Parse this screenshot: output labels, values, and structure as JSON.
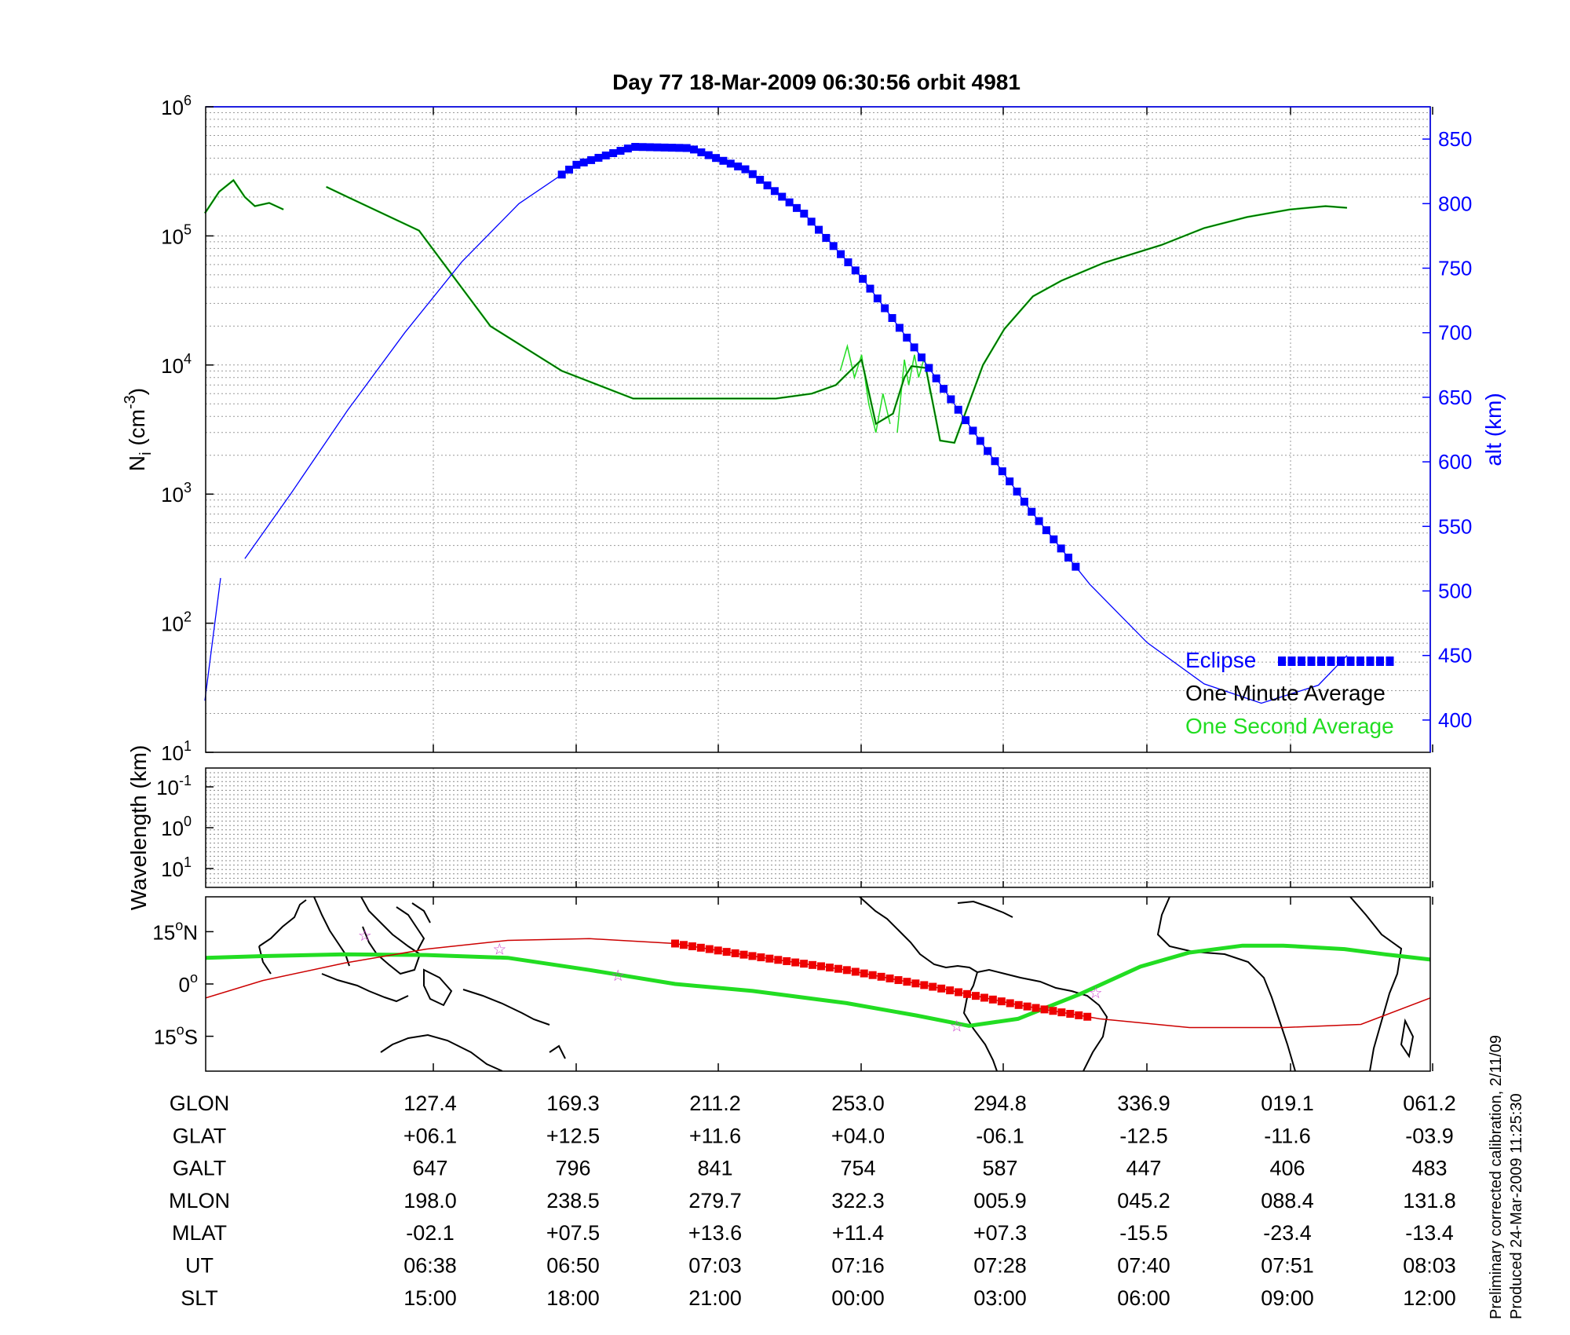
{
  "title": "Day 77  18-Mar-2009 06:30:56   orbit 4981",
  "footer": {
    "line1": "Preliminary corrected calibration, 2/11/09",
    "line2": "Produced 24-Mar-2009 11:25:30"
  },
  "colors": {
    "altitude": "#0000ff",
    "eclipse": "#0000ff",
    "one_minute": "#004400",
    "one_second": "#22dd22",
    "track_red": "#cc0000",
    "track_red_eclipse": "#ee0000",
    "mag_equator": "#22dd22",
    "stars": "#cc44cc"
  },
  "chart_data": [
    {
      "type": "line",
      "name": "density-altitude",
      "ylabel": "N",
      "ylabel_sub": "i",
      "ylabel_unit_open": " (cm",
      "ylabel_unit_exp": "-3",
      "ylabel_unit_close": ")",
      "y2label": "alt (km)",
      "yscale": "log",
      "ylim": [
        10,
        1000000
      ],
      "y_ticks": [
        {
          "base": "10",
          "exp": "1",
          "value": 10
        },
        {
          "base": "10",
          "exp": "2",
          "value": 100
        },
        {
          "base": "10",
          "exp": "3",
          "value": 1000
        },
        {
          "base": "10",
          "exp": "4",
          "value": 10000
        },
        {
          "base": "10",
          "exp": "5",
          "value": 100000
        },
        {
          "base": "10",
          "exp": "6",
          "value": 1000000
        }
      ],
      "y2lim": [
        375,
        875
      ],
      "y2_ticks": [
        "400",
        "450",
        "500",
        "550",
        "600",
        "650",
        "700",
        "750",
        "800",
        "850"
      ],
      "x_ticks_ut": [
        "06:38",
        "06:50",
        "07:03",
        "07:16",
        "07:28",
        "07:40",
        "07:51",
        "08:03"
      ],
      "legend": [
        {
          "label": "Eclipse",
          "key": "eclipse"
        },
        {
          "label": "One Minute Average",
          "key": "one_minute"
        },
        {
          "label": "One Second Average",
          "key": "one_second"
        }
      ],
      "altitude_km": {
        "segments": [
          {
            "x": [
              0.0,
              0.11
            ],
            "y": [
              415,
              510
            ]
          },
          {
            "x": [
              0.28,
              0.6,
              1.0,
              1.4,
              1.8,
              2.2,
              2.6,
              3.0,
              3.4,
              3.8,
              4.2,
              4.6,
              5.0,
              5.4,
              5.8,
              6.2,
              6.6,
              7.0,
              7.4,
              7.8,
              8.0
            ],
            "y": [
              525,
              575,
              640,
              700,
              755,
              800,
              830,
              844,
              843,
              826,
              792,
              743,
              684,
              621,
              560,
              505,
              460,
              428,
              413,
              427,
              450
            ]
          }
        ]
      },
      "eclipse_x": [
        2.5,
        6.1
      ],
      "ni_one_minute": {
        "segments": [
          {
            "x": [
              0.0,
              0.1,
              0.2,
              0.28,
              0.35,
              0.45,
              0.55
            ],
            "y": [
              150000,
              220000,
              270000,
              200000,
              170000,
              180000,
              160000
            ]
          },
          {
            "x": [
              0.85,
              1.0,
              1.5,
              2.0,
              2.5,
              3.0,
              3.5,
              4.0,
              4.25,
              4.42,
              4.52,
              4.6,
              4.7,
              4.82,
              4.9,
              4.95,
              5.05,
              5.1,
              5.15,
              5.25,
              5.35,
              5.45,
              5.6,
              5.8,
              6.0,
              6.3,
              6.7,
              7.0,
              7.3,
              7.6,
              7.85,
              8.0
            ],
            "y": [
              240000,
              200000,
              110000,
              20000,
              9000,
              5500,
              5500,
              5500,
              6000,
              7000,
              9000,
              11000,
              3500,
              4200,
              8000,
              9800,
              9500,
              5000,
              2600,
              2500,
              5000,
              10000,
              19000,
              34000,
              45000,
              62000,
              85000,
              115000,
              140000,
              160000,
              170000,
              165000
            ]
          }
        ]
      },
      "ni_one_second_spikes": [
        {
          "x": [
            4.45,
            4.5,
            4.55,
            4.6,
            4.65,
            4.7,
            4.75,
            4.8
          ],
          "y": [
            9000,
            14000,
            8000,
            12000,
            5000,
            3000,
            6000,
            3500
          ]
        },
        {
          "x": [
            4.85,
            4.9,
            4.93,
            4.97,
            5.0,
            5.04,
            5.08
          ],
          "y": [
            3000,
            11000,
            7000,
            12000,
            8000,
            11500,
            6000
          ]
        }
      ]
    },
    {
      "type": "heatmap",
      "name": "wavelength",
      "ylabel": "Wavelength (km)",
      "y_ticks": [
        {
          "base": "10",
          "exp": "-1"
        },
        {
          "base": "10",
          "exp": "0"
        },
        {
          "base": "10",
          "exp": "1"
        }
      ]
    },
    {
      "type": "line",
      "name": "ground-track-map",
      "y_ticks": [
        {
          "label": "15",
          "deg": "o",
          "suffix": "N",
          "value": 15
        },
        {
          "label": "0",
          "deg": "o",
          "suffix": "",
          "value": 0
        },
        {
          "label": "15",
          "deg": "o",
          "suffix": "S",
          "value": -15
        }
      ],
      "ylim": [
        -25,
        25
      ],
      "xlim_lon": [
        96,
        396
      ],
      "satellite_track": {
        "lon": [
          96,
          110,
          130,
          150,
          170,
          190,
          211,
          230,
          253,
          275,
          295,
          315,
          337,
          360,
          379,
          396
        ],
        "lat": [
          -4,
          1,
          6,
          10,
          12.5,
          13,
          11.6,
          8,
          4,
          -1,
          -6,
          -10,
          -12.5,
          -12.5,
          -11.6,
          -4
        ]
      },
      "eclipse_track_lon": [
        211,
        312
      ],
      "magnetic_equator": {
        "lon": [
          96,
          110,
          130,
          150,
          170,
          190,
          211,
          230,
          253,
          270,
          283,
          295,
          310,
          325,
          337,
          350,
          360,
          375,
          385,
          396
        ],
        "lat": [
          7.5,
          8,
          8.5,
          8.3,
          7.5,
          4,
          0,
          -2,
          -5.5,
          -9,
          -12,
          -10,
          -3,
          5,
          9,
          11,
          11,
          10,
          8.5,
          7
        ]
      },
      "stars": [
        {
          "lon": 135,
          "lat": 14
        },
        {
          "lon": 168,
          "lat": 10
        },
        {
          "lon": 197,
          "lat": 2.5
        },
        {
          "lon": 280,
          "lat": -12
        },
        {
          "lon": 314,
          "lat": -2.5
        }
      ]
    }
  ],
  "table": {
    "rows": [
      {
        "label": "GLON",
        "values": [
          "127.4",
          "169.3",
          "211.2",
          "253.0",
          "294.8",
          "336.9",
          "019.1",
          "061.2"
        ]
      },
      {
        "label": "GLAT",
        "values": [
          "+06.1",
          "+12.5",
          "+11.6",
          "+04.0",
          "-06.1",
          "-12.5",
          "-11.6",
          "-03.9"
        ]
      },
      {
        "label": "GALT",
        "values": [
          "647",
          "796",
          "841",
          "754",
          "587",
          "447",
          "406",
          "483"
        ]
      },
      {
        "label": "MLON",
        "values": [
          "198.0",
          "238.5",
          "279.7",
          "322.3",
          "005.9",
          "045.2",
          "088.4",
          "131.8"
        ]
      },
      {
        "label": "MLAT",
        "values": [
          "-02.1",
          "+07.5",
          "+13.6",
          "+11.4",
          "+07.3",
          "-15.5",
          "-23.4",
          "-13.4"
        ]
      },
      {
        "label": "UT",
        "values": [
          "06:38",
          "06:50",
          "07:03",
          "07:16",
          "07:28",
          "07:40",
          "07:51",
          "08:03"
        ]
      },
      {
        "label": "SLT",
        "values": [
          "15:00",
          "18:00",
          "21:00",
          "00:00",
          "03:00",
          "06:00",
          "09:00",
          "12:00"
        ]
      }
    ]
  }
}
